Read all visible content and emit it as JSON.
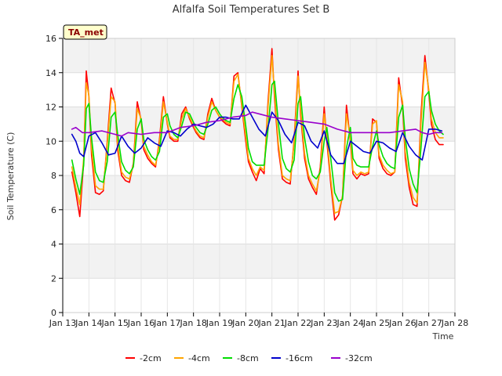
{
  "chart_data": {
    "type": "line",
    "title": "Alfalfa Soil Temperatures Set B",
    "xlabel": "Time",
    "ylabel": "Soil Temperature (C)",
    "badge": "TA_met",
    "xlim": [
      13,
      28
    ],
    "ylim": [
      0,
      16
    ],
    "x_ticks": [
      13,
      14,
      15,
      16,
      17,
      18,
      19,
      20,
      21,
      22,
      23,
      24,
      25,
      26,
      27,
      28
    ],
    "x_tick_labels": [
      "Jan 13",
      "Jan 14",
      "Jan 15",
      "Jan 16",
      "Jan 17",
      "Jan 18",
      "Jan 19",
      "Jan 20",
      "Jan 21",
      "Jan 22",
      "Jan 23",
      "Jan 24",
      "Jan 25",
      "Jan 26",
      "Jan 27",
      "Jan 28"
    ],
    "y_ticks": [
      0,
      2,
      4,
      6,
      8,
      10,
      12,
      14,
      16
    ],
    "y_tick_labels": [
      "0",
      "2",
      "4",
      "6",
      "8",
      "10",
      "12",
      "14",
      "16"
    ],
    "legend_position": "bottom",
    "grid": true,
    "series": [
      {
        "name": "-2cm",
        "color": "#ff0000",
        "x": [
          13.35,
          13.5,
          13.65,
          13.8,
          13.9,
          14.0,
          14.1,
          14.25,
          14.4,
          14.55,
          14.7,
          14.85,
          15.0,
          15.1,
          15.25,
          15.4,
          15.55,
          15.7,
          15.85,
          16.0,
          16.1,
          16.25,
          16.4,
          16.55,
          16.7,
          16.85,
          17.0,
          17.1,
          17.25,
          17.4,
          17.55,
          17.7,
          17.85,
          18.0,
          18.1,
          18.25,
          18.4,
          18.55,
          18.7,
          18.85,
          19.0,
          19.1,
          19.25,
          19.4,
          19.55,
          19.7,
          19.85,
          20.0,
          20.1,
          20.25,
          20.4,
          20.55,
          20.7,
          20.85,
          21.0,
          21.1,
          21.25,
          21.4,
          21.55,
          21.7,
          21.85,
          22.0,
          22.1,
          22.25,
          22.4,
          22.55,
          22.7,
          22.85,
          23.0,
          23.1,
          23.25,
          23.4,
          23.55,
          23.7,
          23.85,
          24.0,
          24.1,
          24.25,
          24.4,
          24.55,
          24.7,
          24.85,
          25.0,
          25.1,
          25.25,
          25.4,
          25.55,
          25.7,
          25.85,
          26.0,
          26.1,
          26.25,
          26.4,
          26.55,
          26.7,
          26.85,
          27.0,
          27.1,
          27.25,
          27.4,
          27.55
        ],
        "y": [
          8.2,
          7.0,
          5.6,
          8.8,
          14.1,
          12.6,
          9.2,
          7.0,
          6.9,
          7.1,
          10.0,
          13.1,
          12.2,
          9.5,
          8.0,
          7.7,
          7.6,
          8.7,
          12.3,
          11.2,
          9.5,
          9.0,
          8.7,
          8.5,
          10.1,
          12.6,
          11.0,
          10.2,
          10.0,
          10.0,
          11.6,
          12.0,
          11.3,
          10.8,
          10.5,
          10.2,
          10.1,
          11.6,
          12.5,
          11.8,
          11.4,
          11.2,
          11.0,
          10.9,
          13.8,
          14.0,
          12.0,
          10.0,
          8.8,
          8.2,
          7.7,
          8.4,
          8.1,
          12.3,
          15.4,
          12.5,
          9.5,
          7.8,
          7.6,
          7.5,
          10.1,
          14.1,
          11.5,
          9.0,
          7.8,
          7.3,
          6.9,
          8.5,
          12.0,
          10.0,
          7.5,
          5.4,
          5.7,
          6.8,
          12.1,
          10.0,
          8.1,
          7.8,
          8.1,
          8.0,
          8.1,
          11.3,
          11.1,
          9.0,
          8.4,
          8.1,
          8.0,
          8.2,
          13.7,
          12.0,
          9.0,
          7.3,
          6.3,
          6.2,
          11.5,
          15.0,
          12.8,
          11.0,
          10.1,
          9.8,
          9.8
        ]
      },
      {
        "name": "-4cm",
        "color": "#ffa500",
        "x": [
          13.35,
          13.5,
          13.65,
          13.8,
          13.9,
          14.0,
          14.1,
          14.25,
          14.4,
          14.55,
          14.7,
          14.85,
          15.0,
          15.1,
          15.25,
          15.4,
          15.55,
          15.7,
          15.85,
          16.0,
          16.1,
          16.25,
          16.4,
          16.55,
          16.7,
          16.85,
          17.0,
          17.1,
          17.25,
          17.4,
          17.55,
          17.7,
          17.85,
          18.0,
          18.1,
          18.25,
          18.4,
          18.55,
          18.7,
          18.85,
          19.0,
          19.1,
          19.25,
          19.4,
          19.55,
          19.7,
          19.85,
          20.0,
          20.1,
          20.25,
          20.4,
          20.55,
          20.7,
          20.85,
          21.0,
          21.1,
          21.25,
          21.4,
          21.55,
          21.7,
          21.85,
          22.0,
          22.1,
          22.25,
          22.4,
          22.55,
          22.7,
          22.85,
          23.0,
          23.1,
          23.25,
          23.4,
          23.55,
          23.7,
          23.85,
          24.0,
          24.1,
          24.25,
          24.4,
          24.55,
          24.7,
          24.85,
          25.0,
          25.1,
          25.25,
          25.4,
          25.55,
          25.7,
          25.85,
          26.0,
          26.1,
          26.25,
          26.4,
          26.55,
          26.7,
          26.85,
          27.0,
          27.1,
          27.25,
          27.4,
          27.55
        ],
        "y": [
          8.5,
          7.3,
          6.3,
          9.0,
          13.4,
          12.7,
          9.6,
          7.4,
          7.2,
          7.2,
          9.8,
          12.6,
          12.3,
          9.8,
          8.2,
          7.9,
          7.8,
          8.6,
          11.9,
          11.3,
          9.7,
          9.2,
          8.8,
          8.6,
          9.9,
          12.3,
          11.1,
          10.3,
          10.1,
          10.1,
          11.3,
          11.9,
          11.4,
          10.9,
          10.6,
          10.3,
          10.2,
          11.4,
          12.3,
          11.8,
          11.4,
          11.3,
          11.1,
          11.0,
          13.5,
          13.9,
          12.1,
          10.3,
          9.0,
          8.4,
          8.0,
          8.5,
          8.3,
          12.0,
          15.0,
          12.8,
          9.8,
          8.0,
          7.8,
          7.7,
          9.9,
          13.8,
          11.8,
          9.3,
          8.0,
          7.5,
          7.1,
          8.3,
          11.6,
          10.3,
          7.8,
          5.8,
          5.9,
          6.8,
          11.6,
          10.2,
          8.3,
          8.0,
          8.2,
          8.1,
          8.2,
          11.0,
          11.2,
          9.2,
          8.6,
          8.3,
          8.1,
          8.2,
          13.3,
          12.3,
          9.4,
          7.6,
          6.7,
          6.4,
          11.0,
          14.6,
          13.0,
          11.3,
          10.5,
          10.2,
          10.2
        ]
      },
      {
        "name": "-8cm",
        "color": "#00dd00",
        "x": [
          13.35,
          13.5,
          13.65,
          13.8,
          13.9,
          14.0,
          14.1,
          14.25,
          14.4,
          14.55,
          14.7,
          14.85,
          15.0,
          15.1,
          15.25,
          15.4,
          15.55,
          15.7,
          15.85,
          16.0,
          16.1,
          16.25,
          16.4,
          16.55,
          16.7,
          16.85,
          17.0,
          17.1,
          17.25,
          17.4,
          17.55,
          17.7,
          17.85,
          18.0,
          18.1,
          18.25,
          18.4,
          18.55,
          18.7,
          18.85,
          19.0,
          19.1,
          19.25,
          19.4,
          19.55,
          19.7,
          19.85,
          20.0,
          20.1,
          20.25,
          20.4,
          20.55,
          20.7,
          20.85,
          21.0,
          21.1,
          21.25,
          21.4,
          21.55,
          21.7,
          21.85,
          22.0,
          22.1,
          22.25,
          22.4,
          22.55,
          22.7,
          22.85,
          23.0,
          23.1,
          23.25,
          23.4,
          23.55,
          23.7,
          23.85,
          24.0,
          24.1,
          24.25,
          24.4,
          24.55,
          24.7,
          24.85,
          25.0,
          25.1,
          25.25,
          25.4,
          25.55,
          25.7,
          25.85,
          26.0,
          26.1,
          26.25,
          26.4,
          26.55,
          26.7,
          26.85,
          27.0,
          27.1,
          27.25,
          27.4,
          27.55
        ],
        "y": [
          8.9,
          7.8,
          6.9,
          8.6,
          11.9,
          12.2,
          10.2,
          8.2,
          7.7,
          7.6,
          8.8,
          11.4,
          11.7,
          10.4,
          8.8,
          8.3,
          8.1,
          8.5,
          10.7,
          11.3,
          10.1,
          9.5,
          9.1,
          8.9,
          9.4,
          11.4,
          11.6,
          10.9,
          10.4,
          10.2,
          10.9,
          11.7,
          11.6,
          11.1,
          10.8,
          10.5,
          10.4,
          11.0,
          11.8,
          12.0,
          11.6,
          11.4,
          11.2,
          11.1,
          12.5,
          13.3,
          12.6,
          10.9,
          9.6,
          8.8,
          8.6,
          8.6,
          8.6,
          10.7,
          13.3,
          13.5,
          11.0,
          9.0,
          8.4,
          8.2,
          8.9,
          12.2,
          12.6,
          10.2,
          8.8,
          8.0,
          7.8,
          8.2,
          10.0,
          10.8,
          9.0,
          7.0,
          6.5,
          6.6,
          9.6,
          10.8,
          9.0,
          8.6,
          8.5,
          8.5,
          8.5,
          9.7,
          10.6,
          9.8,
          9.1,
          8.7,
          8.5,
          8.4,
          11.4,
          12.1,
          10.2,
          8.4,
          7.5,
          7.0,
          9.6,
          12.6,
          12.9,
          11.8,
          11.0,
          10.6,
          10.4
        ]
      },
      {
        "name": "-16cm",
        "color": "#0000cc",
        "x": [
          13.35,
          13.5,
          13.65,
          13.8,
          14.0,
          14.25,
          14.5,
          14.75,
          15.0,
          15.25,
          15.5,
          15.75,
          16.0,
          16.25,
          16.5,
          16.75,
          17.0,
          17.25,
          17.5,
          17.75,
          18.0,
          18.25,
          18.5,
          18.75,
          19.0,
          19.25,
          19.5,
          19.75,
          20.0,
          20.25,
          20.5,
          20.75,
          21.0,
          21.25,
          21.5,
          21.75,
          22.0,
          22.25,
          22.5,
          22.75,
          23.0,
          23.25,
          23.5,
          23.75,
          24.0,
          24.25,
          24.5,
          24.75,
          25.0,
          25.25,
          25.5,
          25.75,
          26.0,
          26.25,
          26.5,
          26.75,
          27.0,
          27.25,
          27.5
        ],
        "y": [
          10.4,
          10.0,
          9.3,
          9.1,
          10.3,
          10.5,
          9.9,
          9.2,
          9.3,
          10.3,
          9.7,
          9.3,
          9.6,
          10.2,
          9.9,
          9.7,
          10.6,
          10.5,
          10.3,
          10.7,
          11.0,
          10.9,
          10.8,
          11.0,
          11.4,
          11.4,
          11.3,
          11.3,
          12.1,
          11.4,
          10.7,
          10.3,
          11.7,
          11.2,
          10.4,
          9.9,
          11.1,
          10.9,
          10.0,
          9.6,
          10.6,
          9.2,
          8.7,
          8.7,
          10.0,
          9.7,
          9.4,
          9.3,
          10.0,
          9.9,
          9.6,
          9.4,
          10.5,
          9.7,
          9.2,
          8.9,
          10.7,
          10.7,
          10.6
        ]
      },
      {
        "name": "-32cm",
        "color": "#9900cc",
        "x": [
          13.35,
          13.5,
          13.75,
          14.0,
          14.5,
          15.0,
          15.25,
          15.5,
          16.0,
          16.5,
          17.0,
          17.5,
          18.0,
          18.5,
          19.0,
          19.5,
          20.0,
          20.25,
          20.5,
          21.0,
          21.5,
          22.0,
          22.5,
          23.0,
          23.5,
          24.0,
          24.5,
          25.0,
          25.5,
          26.0,
          26.5,
          26.75,
          27.0,
          27.25,
          27.5
        ],
        "y": [
          10.7,
          10.8,
          10.5,
          10.5,
          10.6,
          10.4,
          10.3,
          10.5,
          10.4,
          10.5,
          10.5,
          10.8,
          10.9,
          11.1,
          11.2,
          11.4,
          11.5,
          11.7,
          11.6,
          11.4,
          11.3,
          11.2,
          11.1,
          11.0,
          10.7,
          10.5,
          10.5,
          10.5,
          10.5,
          10.6,
          10.7,
          10.5,
          10.4,
          10.5,
          10.5
        ]
      }
    ]
  }
}
